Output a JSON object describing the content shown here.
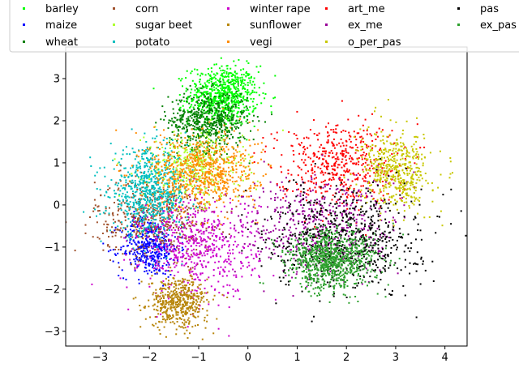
{
  "chart_data": {
    "type": "scatter",
    "title": "",
    "xlabel": "",
    "ylabel": "",
    "xlim": [
      -3.7,
      4.45
    ],
    "ylim": [
      -3.35,
      3.75
    ],
    "xticks": [
      -3,
      -2,
      -1,
      0,
      1,
      2,
      3,
      4
    ],
    "yticks": [
      -3,
      -2,
      -1,
      0,
      1,
      2,
      3
    ],
    "xtick_labels": [
      "−3",
      "−2",
      "−1",
      "0",
      "1",
      "2",
      "3",
      "4"
    ],
    "ytick_labels": [
      "−3",
      "−2",
      "−1",
      "0",
      "1",
      "2",
      "3"
    ],
    "grid": false,
    "legend_position": "top",
    "legend_columns": 6,
    "series": [
      {
        "name": "barley",
        "color": "#00ff00",
        "cx": -0.5,
        "cy": 2.6,
        "sx": 0.35,
        "sy": 0.35,
        "n": 700
      },
      {
        "name": "maize",
        "color": "#0000ff",
        "cx": -2.0,
        "cy": -1.0,
        "sx": 0.3,
        "sy": 0.35,
        "n": 400
      },
      {
        "name": "wheat",
        "color": "#008000",
        "cx": -0.8,
        "cy": 2.0,
        "sx": 0.4,
        "sy": 0.35,
        "n": 600
      },
      {
        "name": "corn",
        "color": "#a0522d",
        "cx": -1.9,
        "cy": -0.3,
        "sx": 0.6,
        "sy": 0.45,
        "n": 500
      },
      {
        "name": "sugar beet",
        "color": "#adff2f",
        "cx": -1.1,
        "cy": 0.9,
        "sx": 0.5,
        "sy": 0.4,
        "n": 400
      },
      {
        "name": "potato",
        "color": "#00bfbf",
        "cx": -2.0,
        "cy": 0.3,
        "sx": 0.4,
        "sy": 0.5,
        "n": 700
      },
      {
        "name": "winter rape",
        "color": "#cc00cc",
        "cx": -1.0,
        "cy": -1.0,
        "sx": 0.6,
        "sy": 0.6,
        "n": 600
      },
      {
        "name": "sunflower",
        "color": "#b8860b",
        "cx": -1.4,
        "cy": -2.3,
        "sx": 0.3,
        "sy": 0.3,
        "n": 500
      },
      {
        "name": "vegi",
        "color": "#ff8c00",
        "cx": -0.9,
        "cy": 0.8,
        "sx": 0.55,
        "sy": 0.45,
        "n": 700
      },
      {
        "name": "art_me",
        "color": "#ff0000",
        "cx": 1.8,
        "cy": 1.0,
        "sx": 0.6,
        "sy": 0.5,
        "n": 500
      },
      {
        "name": "ex_me",
        "color": "#990099",
        "cx": 1.5,
        "cy": -0.5,
        "sx": 0.8,
        "sy": 0.6,
        "n": 500
      },
      {
        "name": "o_per_pas",
        "color": "#c8c800",
        "cx": 3.0,
        "cy": 0.8,
        "sx": 0.35,
        "sy": 0.45,
        "n": 500
      },
      {
        "name": "pas",
        "color": "#000000",
        "cx": 2.0,
        "cy": -0.8,
        "sx": 0.75,
        "sy": 0.6,
        "n": 700
      },
      {
        "name": "ex_pas",
        "color": "#2ca02c",
        "cx": 1.7,
        "cy": -1.3,
        "sx": 0.45,
        "sy": 0.35,
        "n": 900
      }
    ]
  }
}
